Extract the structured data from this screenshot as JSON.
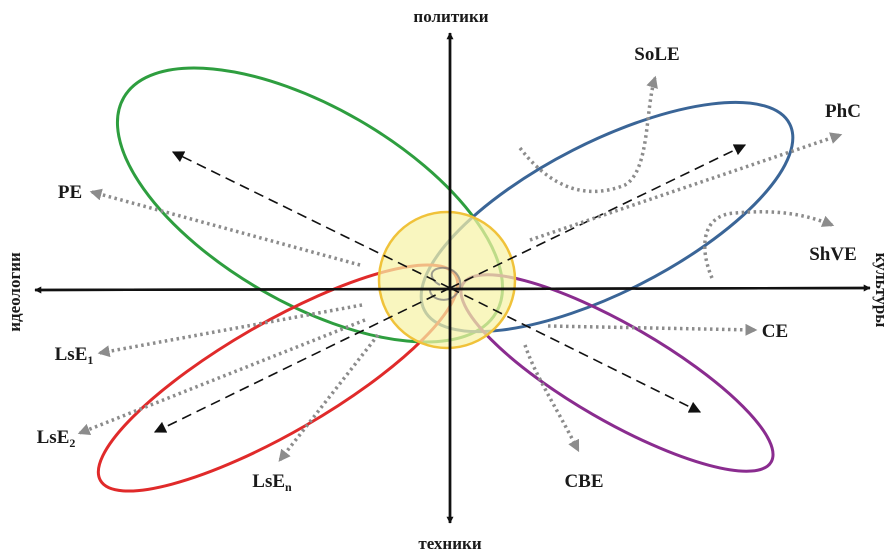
{
  "axes": {
    "top": "политики",
    "bottom": "техники",
    "left": "идеологии",
    "right": "культуры"
  },
  "labels": {
    "sole": "SoLE",
    "phc": "PhC",
    "pe": "PE",
    "shve": "ShVE",
    "ce": "CE",
    "lse1_main": "LsE",
    "lse1_sub": "1",
    "lse2_main": "LsE",
    "lse2_sub": "2",
    "lsen_main": "LsE",
    "lsen_sub": "n",
    "cbe": "CBE"
  },
  "colors": {
    "green": "#2e9e3f",
    "blue": "#3a6597",
    "red": "#e02a2a",
    "purple": "#8a2c8f",
    "center_fill": "#f6f2a6",
    "center_stroke": "#f0c23a",
    "dotted": "#8c8c8c",
    "axis": "#111111"
  }
}
